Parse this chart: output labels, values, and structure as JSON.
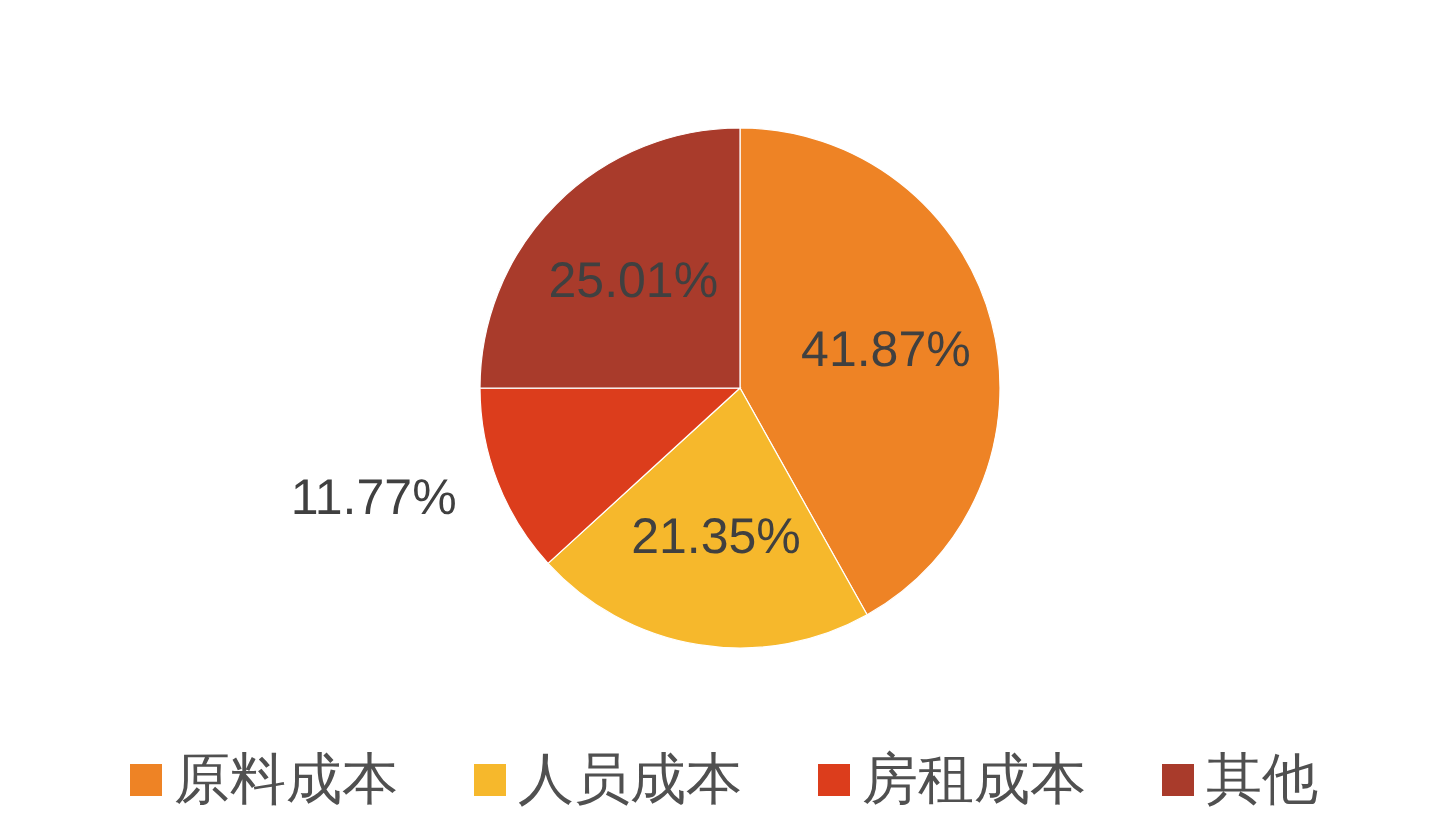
{
  "chart_data": {
    "type": "pie",
    "categories": [
      "原料成本",
      "人员成本",
      "房租成本",
      "其他"
    ],
    "values": [
      41.87,
      21.35,
      11.77,
      25.01
    ],
    "value_labels": [
      "41.87%",
      "21.35%",
      "11.77%",
      "25.01%"
    ],
    "colors": [
      "#ee8325",
      "#f6b82c",
      "#dc3d1c",
      "#a93b2b"
    ],
    "legend": "bottom"
  }
}
